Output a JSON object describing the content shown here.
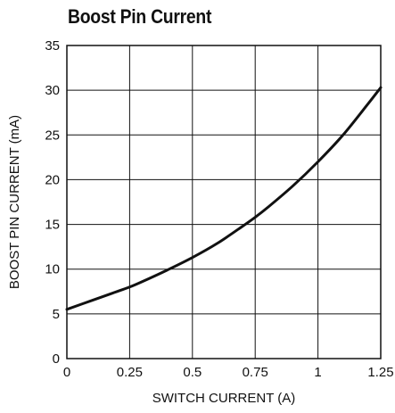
{
  "chart_data": {
    "type": "line",
    "title": "Boost Pin Current",
    "xlabel": "SWITCH CURRENT (A)",
    "ylabel": "BOOST PIN CURRENT (mA)",
    "xlim": [
      0,
      1.25
    ],
    "ylim": [
      0,
      35
    ],
    "x_ticks": [
      0,
      0.25,
      0.5,
      0.75,
      1,
      1.25
    ],
    "x_tick_labels": [
      "0",
      "0.25",
      "0.5",
      "0.75",
      "1",
      "1.25"
    ],
    "y_ticks": [
      0,
      5,
      10,
      15,
      20,
      25,
      30,
      35
    ],
    "y_tick_labels": [
      "0",
      "5",
      "10",
      "15",
      "20",
      "25",
      "30",
      "35"
    ],
    "grid": true,
    "legend": "none",
    "series": [
      {
        "color": "#111111",
        "x": [
          0,
          0.1,
          0.2,
          0.25,
          0.3,
          0.4,
          0.5,
          0.6,
          0.7,
          0.75,
          0.8,
          0.9,
          1.0,
          1.1,
          1.2,
          1.25
        ],
        "y": [
          5.5,
          6.5,
          7.5,
          8.0,
          8.6,
          9.9,
          11.3,
          12.9,
          14.8,
          15.8,
          16.9,
          19.3,
          22.0,
          25.0,
          28.5,
          30.3
        ]
      }
    ]
  }
}
